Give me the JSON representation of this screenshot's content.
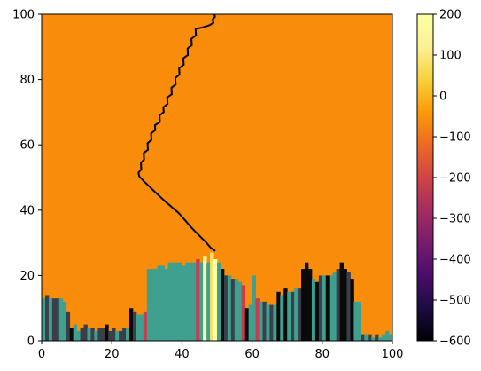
{
  "chart_data": {
    "type": "heatmap",
    "title": "",
    "xlabel": "",
    "ylabel": "",
    "xlim": [
      0,
      100
    ],
    "ylim": [
      0,
      100
    ],
    "grid": false,
    "x_ticks": [
      "0",
      "20",
      "40",
      "60",
      "80",
      "100"
    ],
    "y_ticks": [
      "0",
      "20",
      "40",
      "60",
      "80",
      "100"
    ],
    "background_value": 0,
    "background_color": "#f98c0a",
    "colorbar": {
      "colormap": "inferno",
      "range": [
        -600,
        200
      ],
      "ticks": [
        "200",
        "100",
        "0",
        "−100",
        "−200",
        "−300",
        "−400",
        "−500",
        "−600"
      ],
      "tick_values": [
        200,
        100,
        0,
        -100,
        -200,
        -300,
        -400,
        -500,
        -600
      ]
    },
    "terrain_colors": {
      "teal": "#40a090",
      "dark": "#3a3f4a",
      "black": "#0a0a0a",
      "crimson": "#c83c4f",
      "yellow": "#fbe06a",
      "pale": "#fcffa4"
    },
    "terrain_columns": [
      {
        "x0": 0,
        "x1": 1,
        "top": 13,
        "fill": "teal"
      },
      {
        "x0": 1,
        "x1": 2,
        "top": 14,
        "fill": "dark"
      },
      {
        "x0": 2,
        "x1": 3,
        "top": 13,
        "fill": "teal"
      },
      {
        "x0": 3,
        "x1": 5,
        "top": 13,
        "fill": "dark"
      },
      {
        "x0": 5,
        "x1": 6,
        "top": 13,
        "fill": "teal"
      },
      {
        "x0": 6,
        "x1": 7,
        "top": 12,
        "fill": "teal"
      },
      {
        "x0": 7,
        "x1": 8,
        "top": 9,
        "fill": "dark"
      },
      {
        "x0": 8,
        "x1": 9,
        "top": 4,
        "fill": "black"
      },
      {
        "x0": 9,
        "x1": 10,
        "top": 5,
        "fill": "teal"
      },
      {
        "x0": 10,
        "x1": 11,
        "top": 3,
        "fill": "teal"
      },
      {
        "x0": 11,
        "x1": 12,
        "top": 4,
        "fill": "dark"
      },
      {
        "x0": 12,
        "x1": 13,
        "top": 5,
        "fill": "dark"
      },
      {
        "x0": 13,
        "x1": 14,
        "top": 4,
        "fill": "teal"
      },
      {
        "x0": 14,
        "x1": 15,
        "top": 4,
        "fill": "dark"
      },
      {
        "x0": 15,
        "x1": 16,
        "top": 3,
        "fill": "teal"
      },
      {
        "x0": 16,
        "x1": 18,
        "top": 4,
        "fill": "dark"
      },
      {
        "x0": 18,
        "x1": 19,
        "top": 5,
        "fill": "black"
      },
      {
        "x0": 19,
        "x1": 20,
        "top": 3,
        "fill": "dark"
      },
      {
        "x0": 20,
        "x1": 21,
        "top": 4,
        "fill": "dark"
      },
      {
        "x0": 21,
        "x1": 22,
        "top": 3,
        "fill": "teal"
      },
      {
        "x0": 22,
        "x1": 23,
        "top": 3,
        "fill": "dark"
      },
      {
        "x0": 23,
        "x1": 24,
        "top": 4,
        "fill": "dark"
      },
      {
        "x0": 24,
        "x1": 25,
        "top": 4,
        "fill": "teal"
      },
      {
        "x0": 25,
        "x1": 26,
        "top": 10,
        "fill": "black"
      },
      {
        "x0": 26,
        "x1": 27,
        "top": 9,
        "fill": "dark"
      },
      {
        "x0": 27,
        "x1": 28,
        "top": 8,
        "fill": "teal"
      },
      {
        "x0": 28,
        "x1": 29,
        "top": 8,
        "fill": "teal"
      },
      {
        "x0": 29,
        "x1": 30,
        "top": 9,
        "fill": "crimson"
      },
      {
        "x0": 30,
        "x1": 31,
        "top": 22,
        "fill": "teal"
      },
      {
        "x0": 31,
        "x1": 33,
        "top": 22,
        "fill": "teal"
      },
      {
        "x0": 33,
        "x1": 35,
        "top": 23,
        "fill": "teal"
      },
      {
        "x0": 35,
        "x1": 36,
        "top": 22,
        "fill": "teal"
      },
      {
        "x0": 36,
        "x1": 40,
        "top": 24,
        "fill": "teal"
      },
      {
        "x0": 40,
        "x1": 41,
        "top": 23,
        "fill": "teal"
      },
      {
        "x0": 41,
        "x1": 44,
        "top": 24,
        "fill": "teal"
      },
      {
        "x0": 44,
        "x1": 45,
        "top": 25,
        "fill": "crimson"
      },
      {
        "x0": 45,
        "x1": 46,
        "top": 24,
        "fill": "teal"
      },
      {
        "x0": 46,
        "x1": 47,
        "top": 26,
        "fill": "pale"
      },
      {
        "x0": 47,
        "x1": 48,
        "top": 24,
        "fill": "teal"
      },
      {
        "x0": 48,
        "x1": 49,
        "top": 27,
        "fill": "yellow"
      },
      {
        "x0": 49,
        "x1": 50,
        "top": 25,
        "fill": "pale"
      },
      {
        "x0": 50,
        "x1": 51,
        "top": 24,
        "fill": "teal"
      },
      {
        "x0": 51,
        "x1": 52,
        "top": 22,
        "fill": "black"
      },
      {
        "x0": 52,
        "x1": 53,
        "top": 20,
        "fill": "dark"
      },
      {
        "x0": 53,
        "x1": 54,
        "top": 20,
        "fill": "teal"
      },
      {
        "x0": 54,
        "x1": 55,
        "top": 19,
        "fill": "dark"
      },
      {
        "x0": 55,
        "x1": 56,
        "top": 19,
        "fill": "teal"
      },
      {
        "x0": 56,
        "x1": 57,
        "top": 18,
        "fill": "teal"
      },
      {
        "x0": 57,
        "x1": 58,
        "top": 17,
        "fill": "crimson"
      },
      {
        "x0": 58,
        "x1": 59,
        "top": 10,
        "fill": "black"
      },
      {
        "x0": 59,
        "x1": 60,
        "top": 11,
        "fill": "teal"
      },
      {
        "x0": 60,
        "x1": 61,
        "top": 20,
        "fill": "teal"
      },
      {
        "x0": 61,
        "x1": 62,
        "top": 13,
        "fill": "crimson"
      },
      {
        "x0": 62,
        "x1": 63,
        "top": 12,
        "fill": "teal"
      },
      {
        "x0": 63,
        "x1": 64,
        "top": 12,
        "fill": "dark"
      },
      {
        "x0": 64,
        "x1": 65,
        "top": 11,
        "fill": "teal"
      },
      {
        "x0": 65,
        "x1": 66,
        "top": 11,
        "fill": "dark"
      },
      {
        "x0": 66,
        "x1": 67,
        "top": 11,
        "fill": "teal"
      },
      {
        "x0": 67,
        "x1": 68,
        "top": 15,
        "fill": "black"
      },
      {
        "x0": 68,
        "x1": 69,
        "top": 14,
        "fill": "teal"
      },
      {
        "x0": 69,
        "x1": 70,
        "top": 16,
        "fill": "black"
      },
      {
        "x0": 70,
        "x1": 71,
        "top": 15,
        "fill": "teal"
      },
      {
        "x0": 71,
        "x1": 72,
        "top": 15,
        "fill": "dark"
      },
      {
        "x0": 72,
        "x1": 73,
        "top": 16,
        "fill": "teal"
      },
      {
        "x0": 73,
        "x1": 74,
        "top": 16,
        "fill": "dark"
      },
      {
        "x0": 74,
        "x1": 75,
        "top": 22,
        "fill": "black"
      },
      {
        "x0": 75,
        "x1": 76,
        "top": 24,
        "fill": "black"
      },
      {
        "x0": 76,
        "x1": 77,
        "top": 22,
        "fill": "black"
      },
      {
        "x0": 77,
        "x1": 78,
        "top": 19,
        "fill": "teal"
      },
      {
        "x0": 78,
        "x1": 79,
        "top": 18,
        "fill": "black"
      },
      {
        "x0": 79,
        "x1": 80,
        "top": 20,
        "fill": "dark"
      },
      {
        "x0": 80,
        "x1": 81,
        "top": 20,
        "fill": "teal"
      },
      {
        "x0": 81,
        "x1": 82,
        "top": 20,
        "fill": "black"
      },
      {
        "x0": 82,
        "x1": 83,
        "top": 20,
        "fill": "teal"
      },
      {
        "x0": 83,
        "x1": 84,
        "top": 21,
        "fill": "teal"
      },
      {
        "x0": 84,
        "x1": 85,
        "top": 22,
        "fill": "dark"
      },
      {
        "x0": 85,
        "x1": 86,
        "top": 24,
        "fill": "black"
      },
      {
        "x0": 86,
        "x1": 87,
        "top": 22,
        "fill": "black"
      },
      {
        "x0": 87,
        "x1": 88,
        "top": 21,
        "fill": "dark"
      },
      {
        "x0": 88,
        "x1": 89,
        "top": 19,
        "fill": "black"
      },
      {
        "x0": 89,
        "x1": 90,
        "top": 12,
        "fill": "teal"
      },
      {
        "x0": 90,
        "x1": 91,
        "top": 12,
        "fill": "teal"
      },
      {
        "x0": 91,
        "x1": 92,
        "top": 2,
        "fill": "dark"
      },
      {
        "x0": 92,
        "x1": 93,
        "top": 2,
        "fill": "teal"
      },
      {
        "x0": 93,
        "x1": 94,
        "top": 2,
        "fill": "dark"
      },
      {
        "x0": 94,
        "x1": 95,
        "top": 1,
        "fill": "teal"
      },
      {
        "x0": 95,
        "x1": 96,
        "top": 2,
        "fill": "dark"
      },
      {
        "x0": 96,
        "x1": 97,
        "top": 1,
        "fill": "teal"
      },
      {
        "x0": 97,
        "x1": 98,
        "top": 2,
        "fill": "teal"
      },
      {
        "x0": 98,
        "x1": 99,
        "top": 3,
        "fill": "teal"
      },
      {
        "x0": 99,
        "x1": 100,
        "top": 2,
        "fill": "teal"
      }
    ],
    "line": {
      "color": "#000000",
      "points": [
        [
          49.5,
          27.5
        ],
        [
          48.2,
          28.5
        ],
        [
          47,
          30
        ],
        [
          45.8,
          31.3
        ],
        [
          44.5,
          32.7
        ],
        [
          43.3,
          34
        ],
        [
          42,
          35.5
        ],
        [
          41,
          36.8
        ],
        [
          40,
          38
        ],
        [
          39,
          39.2
        ],
        [
          37.8,
          40.3
        ],
        [
          36.5,
          41.5
        ],
        [
          35.2,
          42.7
        ],
        [
          34,
          43.9
        ],
        [
          32.8,
          45.1
        ],
        [
          31.5,
          46.4
        ],
        [
          30.3,
          47.7
        ],
        [
          29.1,
          48.9
        ],
        [
          27.8,
          50.4
        ],
        [
          27.6,
          51.5
        ],
        [
          28.4,
          52.5
        ],
        [
          28.3,
          54.5
        ],
        [
          29.2,
          55.5
        ],
        [
          29.1,
          57.5
        ],
        [
          30.3,
          58.5
        ],
        [
          30.2,
          60.5
        ],
        [
          31.3,
          61.5
        ],
        [
          31.2,
          63.5
        ],
        [
          32.4,
          64.5
        ],
        [
          32.3,
          66
        ],
        [
          33.7,
          67
        ],
        [
          33.6,
          69
        ],
        [
          34.8,
          70
        ],
        [
          34.7,
          71.5
        ],
        [
          35.9,
          72.5
        ],
        [
          35.8,
          74.5
        ],
        [
          37.1,
          75.5
        ],
        [
          37,
          77.5
        ],
        [
          38.2,
          78.5
        ],
        [
          38.1,
          80.5
        ],
        [
          39.3,
          81.5
        ],
        [
          39.2,
          83.5
        ],
        [
          40.5,
          84.5
        ],
        [
          40.4,
          86.5
        ],
        [
          41.7,
          87.5
        ],
        [
          41.6,
          89.5
        ],
        [
          42.8,
          90.5
        ],
        [
          42.7,
          92.5
        ],
        [
          44,
          93.5
        ],
        [
          43.9,
          95.5
        ],
        [
          46,
          96
        ],
        [
          47.8,
          96.6
        ],
        [
          49,
          97.4
        ],
        [
          48.7,
          98.3
        ],
        [
          49.4,
          99.2
        ],
        [
          49.3,
          100
        ]
      ]
    }
  }
}
